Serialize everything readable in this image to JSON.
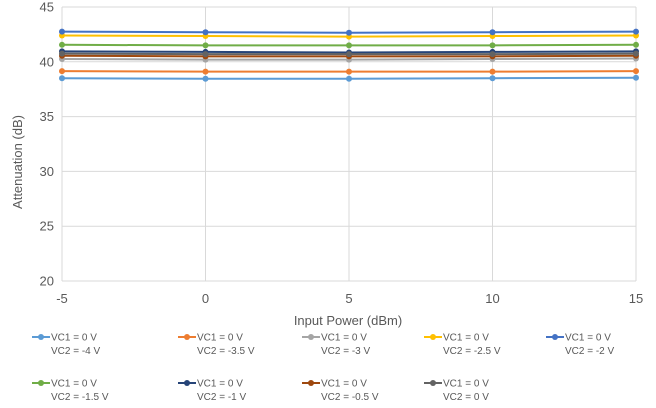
{
  "chart_data": {
    "type": "line",
    "title": "",
    "xlabel": "Input Power (dBm)",
    "ylabel": "Attenuation (dB)",
    "x": [
      -5,
      0,
      5,
      10,
      15
    ],
    "xticks": [
      "-5",
      "0",
      "5",
      "10",
      "15"
    ],
    "yticks": [
      "20",
      "25",
      "30",
      "35",
      "40",
      "45"
    ],
    "xlim": [
      -5,
      15
    ],
    "ylim": [
      20,
      45
    ],
    "grid": "on",
    "legend_placement": "bottom",
    "series": [
      {
        "name": "VC1 = 0 V",
        "name2": "VC2 = -4 V",
        "color": "#5B9BD5",
        "values": [
          38.5,
          38.45,
          38.45,
          38.5,
          38.55
        ]
      },
      {
        "name": "VC1 = 0 V",
        "name2": "VC2 = -3.5 V",
        "color": "#ED7D31",
        "values": [
          39.15,
          39.1,
          39.1,
          39.1,
          39.15
        ]
      },
      {
        "name": "VC1 = 0 V",
        "name2": "VC2 = -3 V",
        "color": "#A5A5A5",
        "values": [
          40.25,
          40.2,
          40.2,
          40.25,
          40.3
        ]
      },
      {
        "name": "VC1 = 0 V",
        "name2": "VC2 = -2.5 V",
        "color": "#FFC000",
        "values": [
          42.4,
          42.35,
          42.3,
          42.35,
          42.4
        ]
      },
      {
        "name": "VC1 = 0 V",
        "name2": "VC2 = -2 V",
        "color": "#4472C4",
        "values": [
          42.75,
          42.7,
          42.65,
          42.7,
          42.75
        ]
      },
      {
        "name": "VC1 = 0 V",
        "name2": "VC2 = -1.5 V",
        "color": "#70AD47",
        "values": [
          41.55,
          41.5,
          41.5,
          41.5,
          41.55
        ]
      },
      {
        "name": "VC1 = 0 V",
        "name2": "VC2 = -1 V",
        "color": "#264478",
        "values": [
          40.95,
          40.9,
          40.85,
          40.9,
          40.95
        ]
      },
      {
        "name": "VC1 = 0 V",
        "name2": "VC2 = -0.5 V",
        "color": "#9E480E",
        "values": [
          40.55,
          40.5,
          40.5,
          40.5,
          40.55
        ]
      },
      {
        "name": "VC1 = 0 V",
        "name2": "VC2 = 0 V",
        "color": "#636363",
        "values": [
          40.75,
          40.7,
          40.7,
          40.7,
          40.75
        ]
      }
    ]
  }
}
